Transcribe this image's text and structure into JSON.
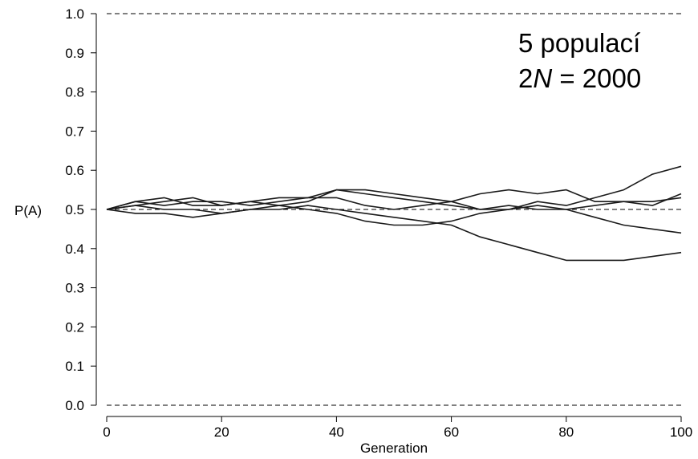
{
  "chart_data": {
    "type": "line",
    "xlabel": "Generation",
    "ylabel": "P(A)",
    "xlim": [
      0,
      100
    ],
    "ylim": [
      0.0,
      1.0
    ],
    "xticks": [
      "0",
      "20",
      "40",
      "60",
      "80",
      "100"
    ],
    "yticks": [
      "0.0",
      "0.1",
      "0.2",
      "0.3",
      "0.4",
      "0.5",
      "0.6",
      "0.7",
      "0.8",
      "0.9",
      "1.0"
    ],
    "reference_lines": [
      0.0,
      0.5,
      1.0
    ],
    "annotation": {
      "line1": "5 populací",
      "line2_prefix": "2",
      "line2_var": "N",
      "line2_suffix": " = 2000"
    },
    "line_color": "#1a1a1a",
    "series": [
      {
        "x": [
          0,
          5,
          10,
          15,
          20,
          25,
          30,
          35,
          40,
          45,
          50,
          55,
          60,
          65,
          70,
          75,
          80,
          85,
          90,
          95,
          100
        ],
        "values": [
          0.5,
          0.52,
          0.51,
          0.52,
          0.52,
          0.51,
          0.52,
          0.53,
          0.55,
          0.54,
          0.53,
          0.52,
          0.51,
          0.5,
          0.5,
          0.52,
          0.51,
          0.53,
          0.55,
          0.59,
          0.61
        ]
      },
      {
        "x": [
          0,
          5,
          10,
          15,
          20,
          25,
          30,
          35,
          40,
          45,
          50,
          55,
          60,
          65,
          70,
          75,
          80,
          85,
          90,
          95,
          100
        ],
        "values": [
          0.5,
          0.51,
          0.5,
          0.5,
          0.49,
          0.5,
          0.5,
          0.51,
          0.5,
          0.49,
          0.48,
          0.47,
          0.46,
          0.43,
          0.41,
          0.39,
          0.37,
          0.37,
          0.37,
          0.38,
          0.39
        ]
      },
      {
        "x": [
          0,
          5,
          10,
          15,
          20,
          25,
          30,
          35,
          40,
          45,
          50,
          55,
          60,
          65,
          70,
          75,
          80,
          85,
          90,
          95,
          100
        ],
        "values": [
          0.5,
          0.52,
          0.53,
          0.51,
          0.51,
          0.52,
          0.53,
          0.53,
          0.53,
          0.51,
          0.5,
          0.51,
          0.52,
          0.54,
          0.55,
          0.54,
          0.55,
          0.52,
          0.52,
          0.51,
          0.54
        ]
      },
      {
        "x": [
          0,
          5,
          10,
          15,
          20,
          25,
          30,
          35,
          40,
          45,
          50,
          55,
          60,
          65,
          70,
          75,
          80,
          85,
          90,
          95,
          100
        ],
        "values": [
          0.5,
          0.49,
          0.49,
          0.48,
          0.49,
          0.5,
          0.51,
          0.5,
          0.49,
          0.47,
          0.46,
          0.46,
          0.47,
          0.49,
          0.5,
          0.51,
          0.5,
          0.48,
          0.46,
          0.45,
          0.44
        ]
      },
      {
        "x": [
          0,
          5,
          10,
          15,
          20,
          25,
          30,
          35,
          40,
          45,
          50,
          55,
          60,
          65,
          70,
          75,
          80,
          85,
          90,
          95,
          100
        ],
        "values": [
          0.5,
          0.51,
          0.52,
          0.53,
          0.51,
          0.52,
          0.51,
          0.52,
          0.55,
          0.55,
          0.54,
          0.53,
          0.52,
          0.5,
          0.51,
          0.5,
          0.5,
          0.51,
          0.52,
          0.52,
          0.53
        ]
      }
    ]
  }
}
